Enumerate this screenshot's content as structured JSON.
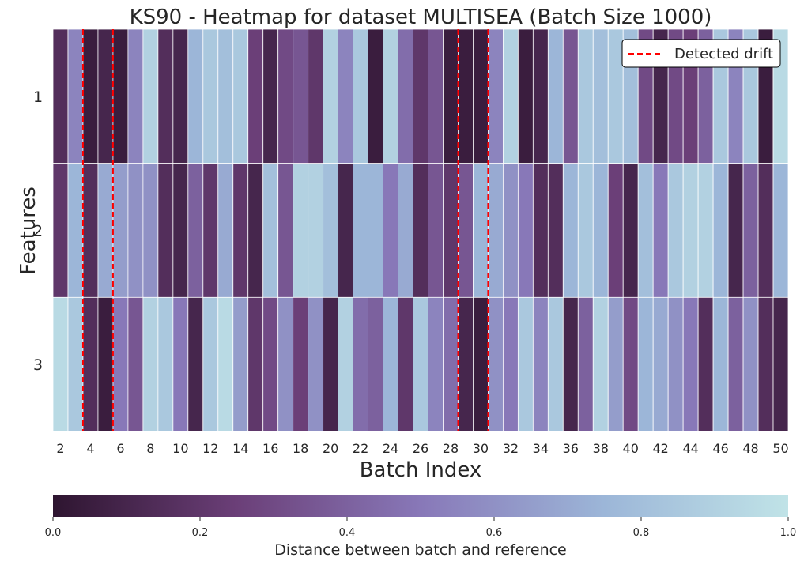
{
  "chart_data": {
    "type": "heatmap",
    "title": "KS90 - Heatmap for dataset MULTISEA (Batch Size 1000)",
    "xlabel": "Batch Index",
    "ylabel": "Features",
    "x": [
      2,
      3,
      4,
      5,
      6,
      7,
      8,
      9,
      10,
      11,
      12,
      13,
      14,
      15,
      16,
      17,
      18,
      19,
      20,
      21,
      22,
      23,
      24,
      25,
      26,
      27,
      28,
      29,
      30,
      31,
      32,
      33,
      34,
      35,
      36,
      37,
      38,
      39,
      40,
      41,
      42,
      43,
      44,
      45,
      46,
      47,
      48,
      49,
      50
    ],
    "xticks": [
      2,
      4,
      6,
      8,
      10,
      12,
      14,
      16,
      18,
      20,
      22,
      24,
      26,
      28,
      30,
      32,
      34,
      36,
      38,
      40,
      42,
      44,
      46,
      48,
      50
    ],
    "y": [
      "1",
      "2",
      "3"
    ],
    "values": [
      [
        0.15,
        0.55,
        0.05,
        0.1,
        0.05,
        0.55,
        0.9,
        0.15,
        0.1,
        0.75,
        0.85,
        0.8,
        0.85,
        0.25,
        0.1,
        0.3,
        0.35,
        0.2,
        0.9,
        0.55,
        0.85,
        0.05,
        0.9,
        0.45,
        0.2,
        0.35,
        0.05,
        0.05,
        0.05,
        0.55,
        0.9,
        0.05,
        0.1,
        0.75,
        0.35,
        0.85,
        0.8,
        0.85,
        0.8,
        0.3,
        0.1,
        0.3,
        0.25,
        0.4,
        0.85,
        0.55,
        0.85,
        0.05,
        0.95
      ],
      [
        0.2,
        0.75,
        0.15,
        0.7,
        0.65,
        0.6,
        0.6,
        0.15,
        0.1,
        0.4,
        0.2,
        0.7,
        0.2,
        0.1,
        0.8,
        0.35,
        0.9,
        0.9,
        0.8,
        0.1,
        0.75,
        0.75,
        0.5,
        0.7,
        0.15,
        0.35,
        0.2,
        0.35,
        0.75,
        0.7,
        0.6,
        0.5,
        0.15,
        0.15,
        0.75,
        0.85,
        0.75,
        0.25,
        0.1,
        0.8,
        0.5,
        0.85,
        0.9,
        0.9,
        0.75,
        0.1,
        0.4,
        0.15,
        0.75
      ],
      [
        0.95,
        0.85,
        0.15,
        0.05,
        0.5,
        0.35,
        0.9,
        0.85,
        0.5,
        0.1,
        0.85,
        0.95,
        0.65,
        0.2,
        0.3,
        0.6,
        0.25,
        0.6,
        0.1,
        0.9,
        0.45,
        0.4,
        0.75,
        0.2,
        0.85,
        0.55,
        0.45,
        0.1,
        0.05,
        0.6,
        0.5,
        0.85,
        0.55,
        0.85,
        0.1,
        0.4,
        0.9,
        0.65,
        0.3,
        0.75,
        0.7,
        0.6,
        0.5,
        0.15,
        0.75,
        0.4,
        0.6,
        0.15,
        0.1
      ]
    ],
    "detected_drift": [
      3.5,
      5.5,
      28.5,
      30.5
    ],
    "legend": {
      "label": "Detected drift",
      "position": "top-right",
      "color": "#ff0000"
    },
    "colorbar": {
      "label": "Distance between batch and reference",
      "ticks": [
        "0.0",
        "0.2",
        "0.4",
        "0.6",
        "0.8",
        "1.0"
      ],
      "range": [
        0,
        1
      ],
      "colormap": [
        "#2e1530",
        "#6b3f78",
        "#8878b8",
        "#9cb6d8",
        "#c0e3e7"
      ]
    }
  }
}
